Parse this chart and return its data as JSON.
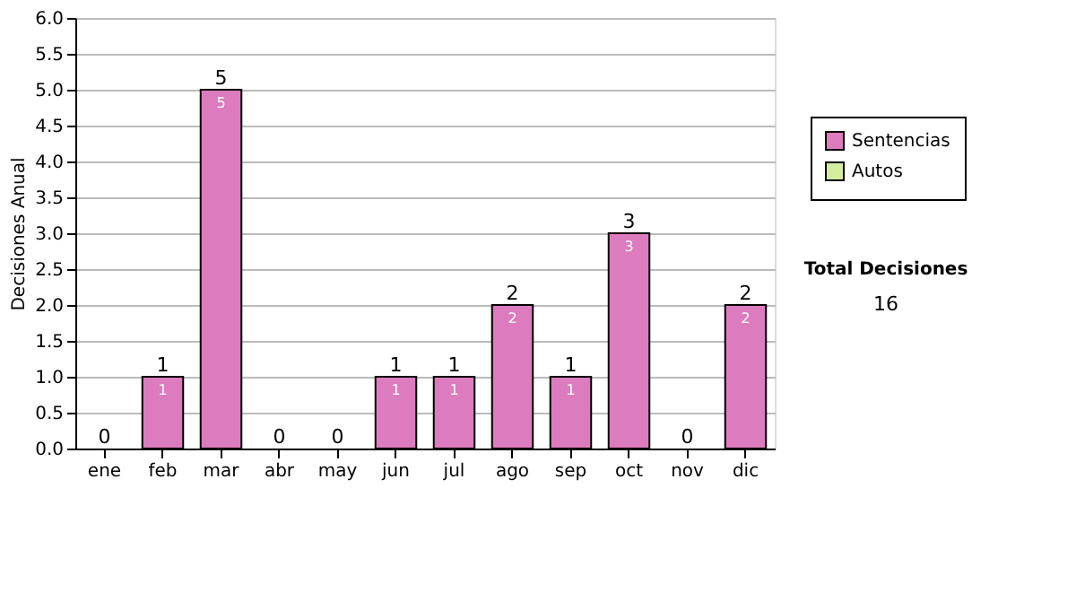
{
  "chart_data": {
    "type": "bar",
    "ylabel": "Decisiones Anual",
    "stacked": true,
    "categories": [
      "ene",
      "feb",
      "mar",
      "abr",
      "may",
      "jun",
      "jul",
      "ago",
      "sep",
      "oct",
      "nov",
      "dic"
    ],
    "series": [
      {
        "name": "Sentencias",
        "color": "#dc7cbe",
        "values": [
          0,
          1,
          5,
          0,
          0,
          1,
          1,
          2,
          1,
          3,
          0,
          2
        ],
        "value_labels": [
          null,
          "1",
          "5",
          null,
          null,
          "1",
          "1",
          "2",
          "1",
          "3",
          null,
          "2"
        ]
      },
      {
        "name": "Autos",
        "color": "#d4eca0",
        "values": [
          0,
          0,
          0,
          0,
          0,
          0,
          0,
          0,
          0,
          0,
          0,
          0
        ]
      }
    ],
    "totals": [
      "0",
      "1",
      "5",
      "0",
      "0",
      "1",
      "1",
      "2",
      "1",
      "3",
      "0",
      "2"
    ],
    "ylim": [
      0,
      6
    ],
    "yticks": [
      {
        "value": 0,
        "label": "0.0"
      },
      {
        "value": 0.5,
        "label": "0.5"
      },
      {
        "value": 1,
        "label": "1.0"
      },
      {
        "value": 1.5,
        "label": "1.5"
      },
      {
        "value": 2,
        "label": "2.0"
      },
      {
        "value": 2.5,
        "label": "2.5"
      },
      {
        "value": 3,
        "label": "3.0"
      },
      {
        "value": 3.5,
        "label": "3.5"
      },
      {
        "value": 4,
        "label": "4.0"
      },
      {
        "value": 4.5,
        "label": "4.5"
      },
      {
        "value": 5,
        "label": "5.0"
      },
      {
        "value": 5.5,
        "label": "5.5"
      },
      {
        "value": 6,
        "label": "6.0"
      }
    ],
    "grid": "y",
    "legend": "right",
    "annotations": [
      "Total Decisiones",
      "16"
    ]
  }
}
